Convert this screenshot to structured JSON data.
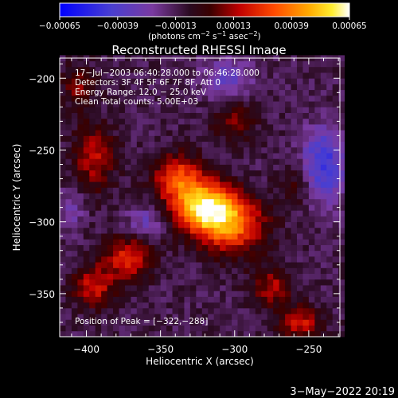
{
  "chart_data": {
    "type": "heatmap",
    "title": "Reconstructed RHESSI Image",
    "xlabel": "Heliocentric X (arcsec)",
    "ylabel": "Heliocentric Y (arcsec)",
    "xlim": [
      -418,
      -229
    ],
    "ylim": [
      -380,
      -186
    ],
    "x_ticks": [
      -400,
      -350,
      -300,
      -250
    ],
    "x_tick_labels": [
      "−400",
      "−350",
      "−300",
      "−250"
    ],
    "y_ticks": [
      -200,
      -250,
      -300,
      -350
    ],
    "y_tick_labels": [
      "−200",
      "−250",
      "−300",
      "−350"
    ],
    "colorbar": {
      "range": [
        -0.00065,
        0.00065
      ],
      "ticks": [
        -0.00065,
        -0.00039,
        -0.00013,
        0.00013,
        0.00039,
        0.00065
      ],
      "tick_labels": [
        "−0.00065",
        "−0.00039",
        "−0.00013",
        "0.00013",
        "0.00039",
        "0.00065"
      ],
      "units_line1": "(photons cm",
      "units_line2": " s",
      "units_line3": " asec",
      "units_line4": ")",
      "units_sup1": "−2",
      "units_sup2": "−1",
      "units_sup3": "−2",
      "colors": [
        "#0000ff",
        "#5a2fb4",
        "#6a2a8a",
        "#000000",
        "#b00000",
        "#ff4000",
        "#ff9a00",
        "#ffe000",
        "#ffffff"
      ]
    },
    "annotations": [
      "17−Jul−2003 06:40:28.000 to 06:46:28.000",
      "Detectors: 3F 4F 5F 6F 7F 8F, Att 0",
      "Energy Range: 12.0 − 25.0 keV",
      "Clean     Total counts: 5.00E+03"
    ],
    "peak_label": "Position of Peak = [−322,−288]",
    "date_stamp": "3−May−2022 20:19",
    "map_grid": {
      "x_start": -418,
      "x_step": 4,
      "y_start": -380,
      "y_step": 4,
      "nx": 48,
      "ny": 49,
      "peak": [
        -322,
        -288
      ],
      "sources": [
        {
          "x": -320,
          "y": -290,
          "amp": 0.00062,
          "sx": 14,
          "sy": 12
        },
        {
          "x": -302,
          "y": -302,
          "amp": 0.00045,
          "sx": 16,
          "sy": 14
        },
        {
          "x": -338,
          "y": -270,
          "amp": 0.0004,
          "sx": 12,
          "sy": 12
        },
        {
          "x": -372,
          "y": -325,
          "amp": 0.00035,
          "sx": 12,
          "sy": 10
        },
        {
          "x": -395,
          "y": -255,
          "amp": 0.00028,
          "sx": 10,
          "sy": 16
        },
        {
          "x": -395,
          "y": -345,
          "amp": 0.0003,
          "sx": 10,
          "sy": 10
        },
        {
          "x": -275,
          "y": -345,
          "amp": 0.00025,
          "sx": 10,
          "sy": 10
        },
        {
          "x": -255,
          "y": -370,
          "amp": 0.0003,
          "sx": 10,
          "sy": 8
        },
        {
          "x": -300,
          "y": -230,
          "amp": 0.0002,
          "sx": 10,
          "sy": 10
        },
        {
          "x": -405,
          "y": -205,
          "amp": 0.0002,
          "sx": 8,
          "sy": 10
        },
        {
          "x": -258,
          "y": -275,
          "amp": 0.00015,
          "sx": 8,
          "sy": 10
        }
      ],
      "negatives": [
        {
          "x": -240,
          "y": -260,
          "amp": 0.00035,
          "sx": 10,
          "sy": 18
        },
        {
          "x": -305,
          "y": -200,
          "amp": 0.0002,
          "sx": 12,
          "sy": 10
        },
        {
          "x": -360,
          "y": -300,
          "amp": 0.00018,
          "sx": 8,
          "sy": 8
        },
        {
          "x": -410,
          "y": -290,
          "amp": 0.00015,
          "sx": 6,
          "sy": 10
        }
      ],
      "baseline": -0.00012
    }
  }
}
